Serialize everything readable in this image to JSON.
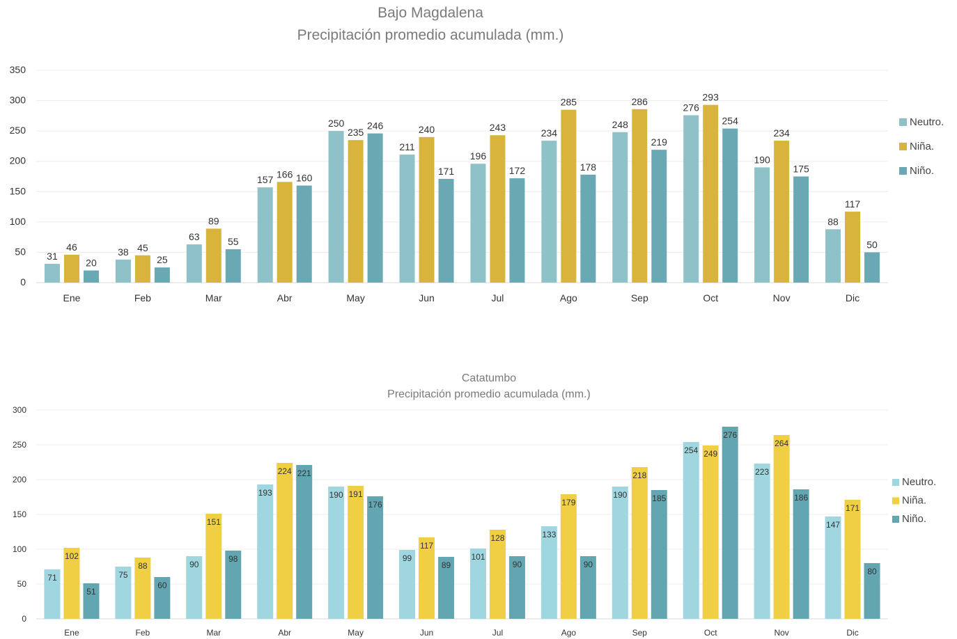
{
  "colors": {
    "neutro": "#8fc1c9",
    "nina": "#d9b43c",
    "nino": "#6aa9b4"
  },
  "chart_data": [
    {
      "type": "bar",
      "title": "Bajo Magdalena",
      "subtitle": "Precipitación promedio acumulada (mm.)",
      "categories": [
        "Ene",
        "Feb",
        "Mar",
        "Abr",
        "May",
        "Jun",
        "Jul",
        "Ago",
        "Sep",
        "Oct",
        "Nov",
        "Dic"
      ],
      "ylim": [
        0,
        350
      ],
      "yticks": [
        0,
        50,
        100,
        150,
        200,
        250,
        300,
        350
      ],
      "grid": true,
      "legend_position": "right",
      "series": [
        {
          "name": "Neutro.",
          "color": "#8fc1c9",
          "values": [
            31,
            38,
            63,
            157,
            250,
            211,
            196,
            234,
            248,
            276,
            190,
            88
          ]
        },
        {
          "name": "Niña.",
          "color": "#d9b43c",
          "values": [
            46,
            45,
            89,
            166,
            235,
            240,
            243,
            285,
            286,
            293,
            234,
            117
          ]
        },
        {
          "name": "Niño.",
          "color": "#6aa9b4",
          "values": [
            20,
            25,
            55,
            160,
            246,
            171,
            172,
            178,
            219,
            254,
            175,
            50
          ]
        }
      ]
    },
    {
      "type": "bar",
      "title": "Catatumbo",
      "subtitle": "Precipitación promedio acumulada (mm.)",
      "categories": [
        "Ene",
        "Feb",
        "Mar",
        "Abr",
        "May",
        "Jun",
        "Jul",
        "Ago",
        "Sep",
        "Oct",
        "Nov",
        "Dic"
      ],
      "ylim": [
        0,
        300
      ],
      "yticks": [
        0,
        50,
        100,
        150,
        200,
        250,
        300
      ],
      "grid": true,
      "legend_position": "right",
      "series": [
        {
          "name": "Neutro.",
          "color": "#9fd6df",
          "values": [
            71,
            75,
            90,
            193,
            190,
            99,
            101,
            133,
            190,
            254,
            223,
            147
          ]
        },
        {
          "name": "Niña.",
          "color": "#f0cf45",
          "values": [
            102,
            88,
            151,
            224,
            191,
            117,
            128,
            179,
            218,
            249,
            264,
            171
          ]
        },
        {
          "name": "Niño.",
          "color": "#63a6b1",
          "values": [
            51,
            60,
            98,
            221,
            176,
            89,
            90,
            90,
            185,
            276,
            186,
            80
          ]
        }
      ]
    }
  ]
}
